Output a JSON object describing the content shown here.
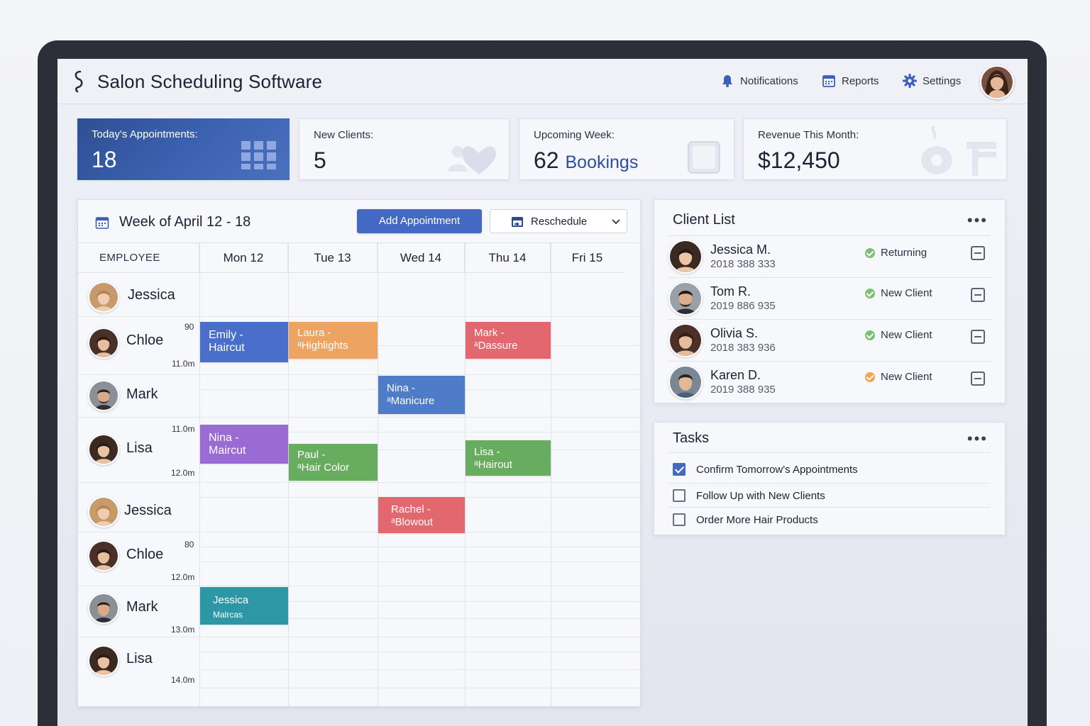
{
  "header": {
    "app_title": "Salon Scheduling Software",
    "nav": [
      {
        "label": "Notifications",
        "icon": "bell-icon"
      },
      {
        "label": "Reports",
        "icon": "calendar-report-icon"
      },
      {
        "label": "Settings",
        "icon": "gear-icon"
      }
    ]
  },
  "stats": [
    {
      "label": "Today's Appointments:",
      "value": "18",
      "icon": "grid-icon"
    },
    {
      "label": "New Clients:",
      "value": "5",
      "icon": "heart-icon"
    },
    {
      "label": "Upcoming Week:",
      "value": "62",
      "value_suffix": "Bookings",
      "icon": "tablet-icon"
    },
    {
      "label": "Revenue This Month:",
      "value": "$12,450",
      "icon": "coffee-icon"
    }
  ],
  "schedule": {
    "title": "Week of April 12 - 18",
    "add_button": "Add Appointment",
    "reschedule_button": "Reschedule",
    "columns": [
      "EMPLOYEE",
      "Mon 12",
      "Tue 13",
      "Wed 14",
      "Thu 14",
      "Fri 15"
    ],
    "employees": [
      {
        "name": "Jessica",
        "times": []
      },
      {
        "name": "Chloe",
        "times": [
          "90",
          "11.0m"
        ]
      },
      {
        "name": "Mark",
        "times": []
      },
      {
        "name": "Lisa",
        "times": [
          "11.0m",
          "12.0m"
        ]
      },
      {
        "name": "Jessica",
        "times": []
      },
      {
        "name": "Chloe",
        "times": [
          "80",
          "12.0m"
        ]
      },
      {
        "name": "Mark",
        "times": [
          "13.0m"
        ]
      },
      {
        "name": "Lisa",
        "times": [
          "14.0m"
        ]
      }
    ],
    "appointments": [
      {
        "line1": "Emily -",
        "line2": "Haircut",
        "color": "#4a6fcb"
      },
      {
        "line1": "Laura -",
        "line2": "ᵃHighlights",
        "color": "#eda463"
      },
      {
        "line1": "Mark -",
        "line2": "ᵃDassure",
        "color": "#e2676f"
      },
      {
        "line1": "Nina -",
        "line2": "ᵃManicure",
        "color": "#4f7cc9"
      },
      {
        "line1": "Nina -",
        "line2": "Maircut",
        "color": "#9a6bd2"
      },
      {
        "line1": "Paul -",
        "line2": "ᵃHair Color",
        "color": "#68ac5f"
      },
      {
        "line1": "Lisa -",
        "line2": "ᵃHairout",
        "color": "#68ac5f"
      },
      {
        "line1": "Rachel -",
        "line2": "ᵃBlowout",
        "color": "#e2676f"
      },
      {
        "line1": "Jessica",
        "line2": "Malrcas",
        "color": "#2e97a5"
      }
    ]
  },
  "client_list": {
    "title": "Client List",
    "more": "•••",
    "clients": [
      {
        "name": "Jessica M.",
        "phone": "2018 388 333",
        "status": "Returning",
        "status_color": "#7cc16f"
      },
      {
        "name": "Tom R.",
        "phone": "2019 886 935",
        "status": "New Client",
        "status_color": "#7cc16f"
      },
      {
        "name": "Olivia S.",
        "phone": "2018 383 936",
        "status": "New Client",
        "status_color": "#7cc16f"
      },
      {
        "name": "Karen D.",
        "phone": "2019 388 935",
        "status": "New Client",
        "status_color": "#f0a550"
      }
    ]
  },
  "tasks": {
    "title": "Tasks",
    "more": "•••",
    "items": [
      {
        "label": "Confirm Tomorrow's Appointments",
        "checked": true
      },
      {
        "label": "Follow Up with New Clients",
        "checked": false
      },
      {
        "label": "Order More Hair Products",
        "checked": false
      }
    ]
  },
  "colors": {
    "accent": "#4469c2",
    "hero_card": "#34549f"
  }
}
